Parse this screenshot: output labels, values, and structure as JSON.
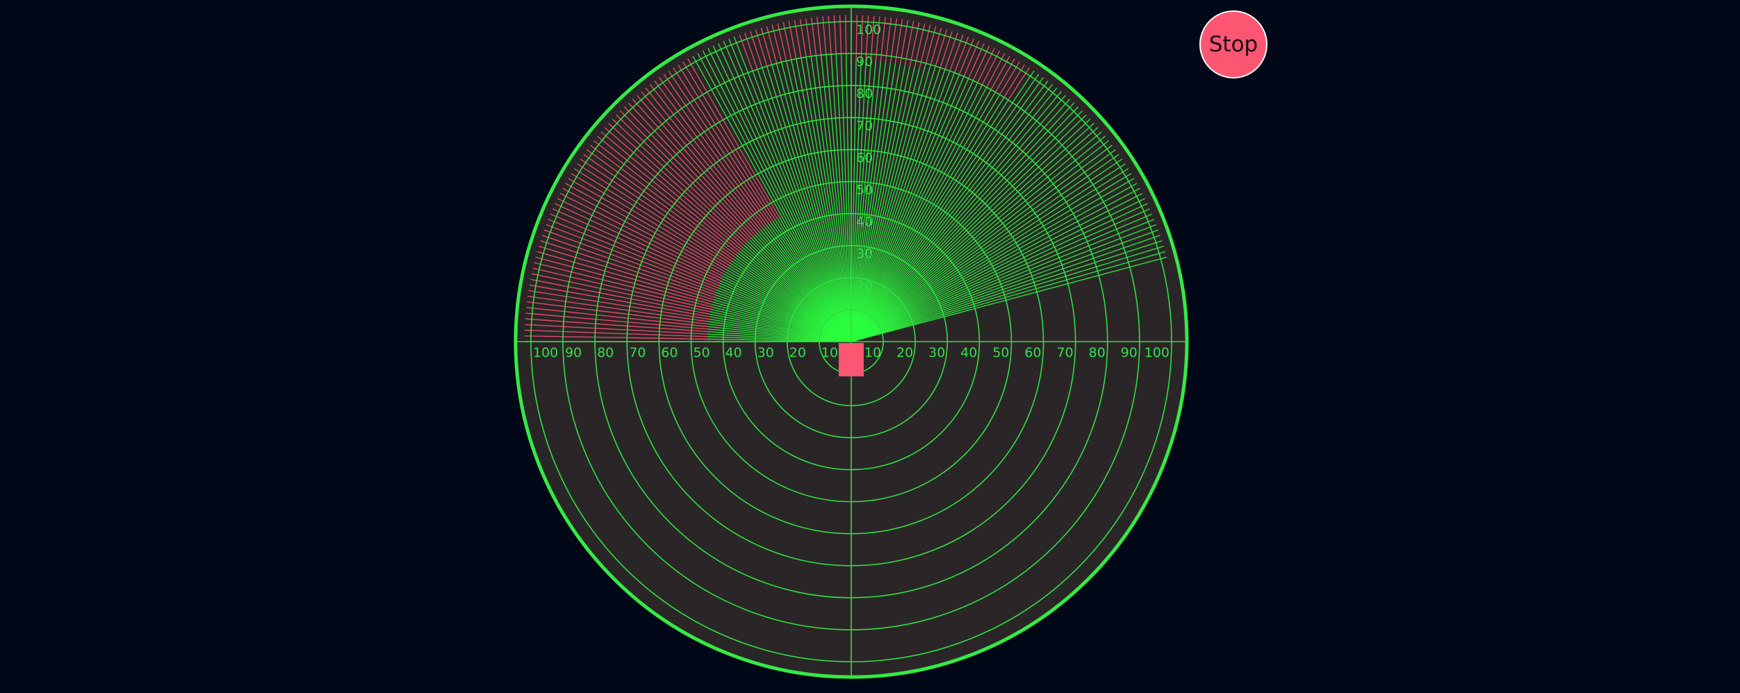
{
  "controls": {
    "stop_label": "Stop"
  },
  "colors": {
    "background": "#000817",
    "radar_fill": "#2a2627",
    "grid": "#2fe042",
    "outer_ring": "#34ea45",
    "beam_clear": "#2cff3f",
    "beam_obstacle": "#fa4f6e",
    "sensor": "#fc5673"
  },
  "radar": {
    "max_range": 100,
    "ring_step": 10,
    "axis_labels_left": [
      "100",
      "90",
      "80",
      "70",
      "60",
      "50",
      "40",
      "30",
      "20",
      "10"
    ],
    "axis_labels_right": [
      "10",
      "20",
      "30",
      "40",
      "50",
      "60",
      "70",
      "80",
      "90",
      "100"
    ],
    "axis_labels_vertical": [
      "100",
      "90",
      "80",
      "70",
      "60",
      "50",
      "40",
      "30",
      "20"
    ],
    "sweep_start_deg": 15,
    "sweep_end_deg": 180,
    "sweep_step_deg": 1,
    "obstacle_zones": [
      {
        "from_deg": 120,
        "to_deg": 180,
        "distance": 45
      },
      {
        "from_deg": 142,
        "to_deg": 180,
        "distance": 55
      },
      {
        "from_deg": 57,
        "to_deg": 76,
        "distance": 90
      },
      {
        "from_deg": 76,
        "to_deg": 90,
        "distance": 88
      },
      {
        "from_deg": 90,
        "to_deg": 110,
        "distance": 90
      }
    ]
  }
}
